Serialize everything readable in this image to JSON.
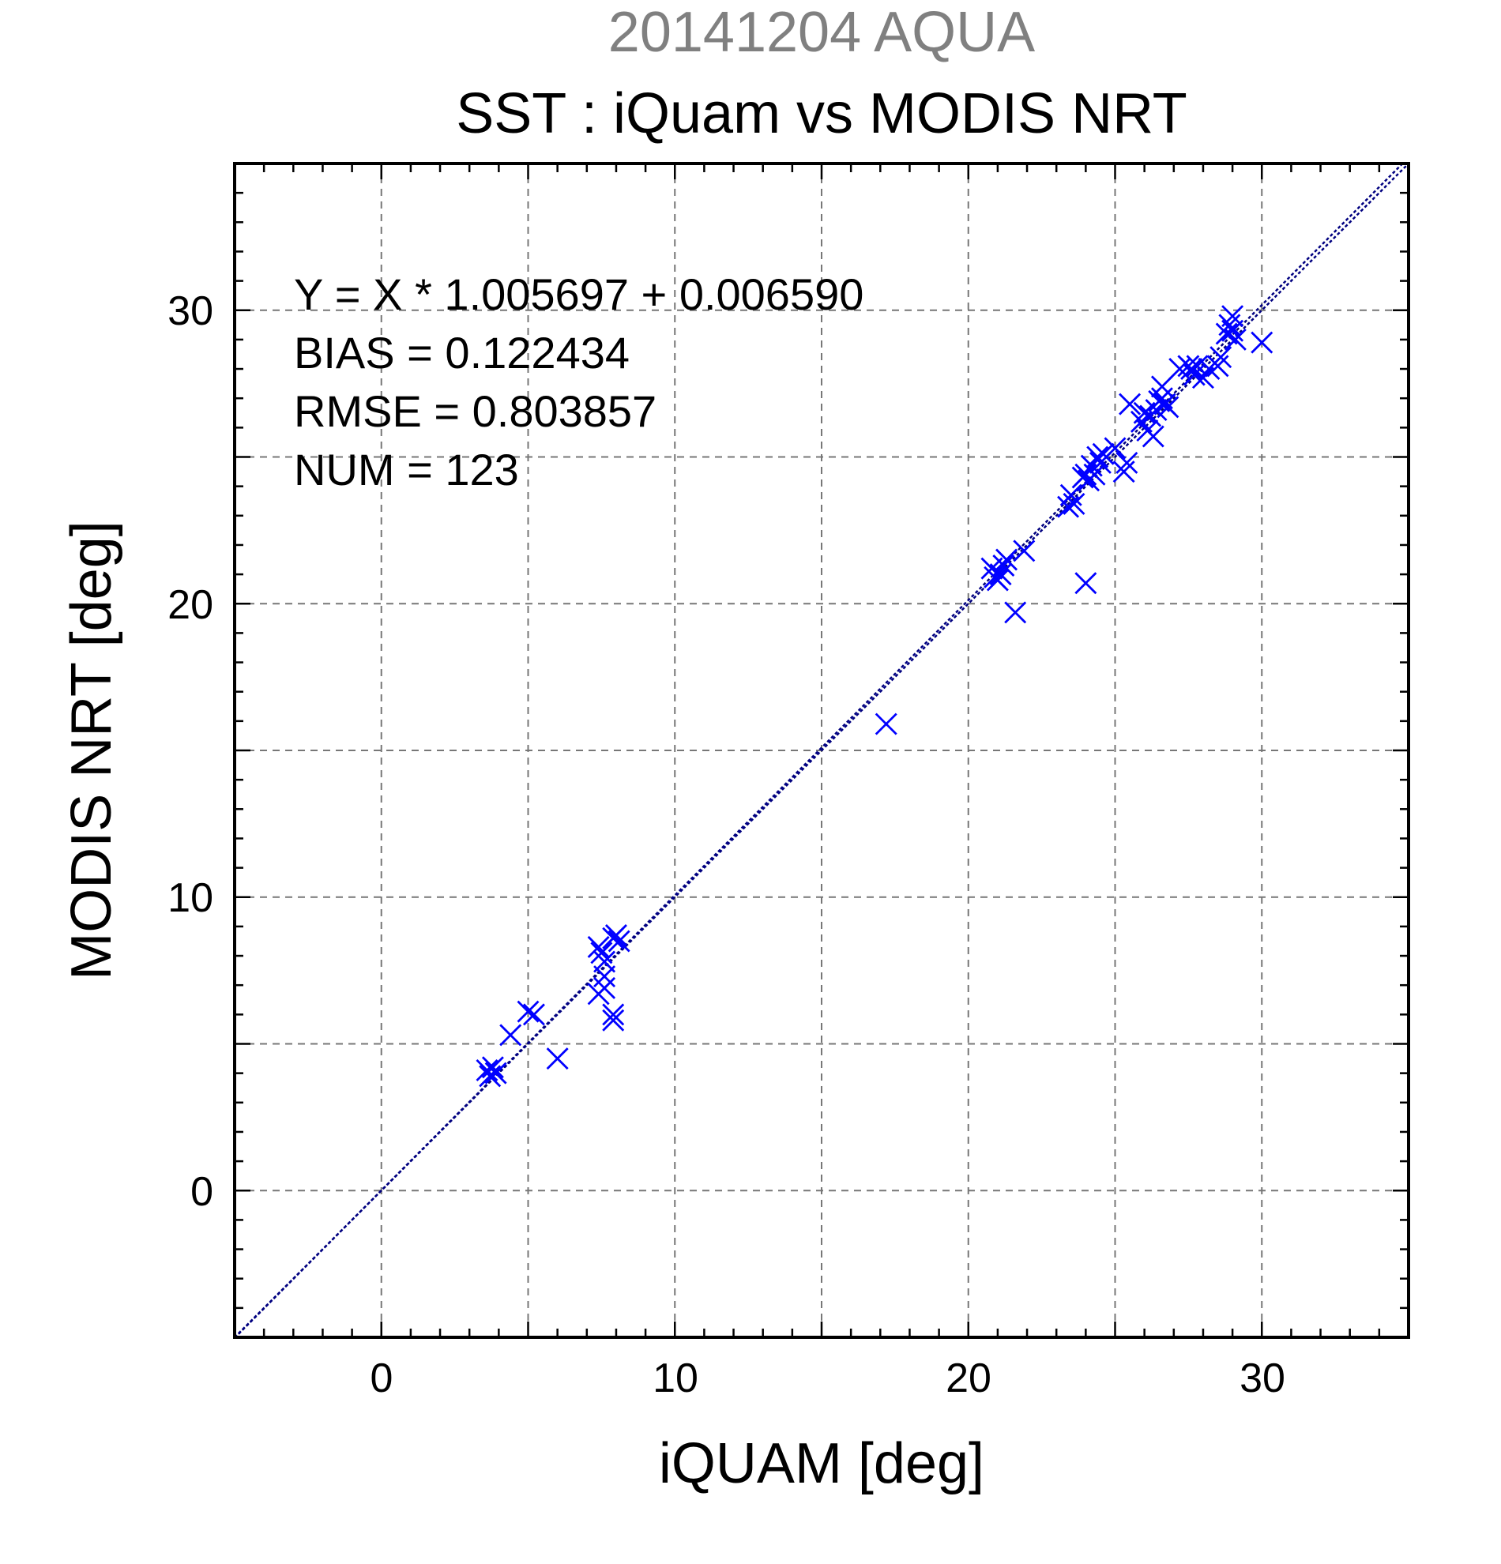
{
  "chart_data": {
    "type": "scatter",
    "title": "20141204 AQUA",
    "subtitle": "SST : iQuam vs MODIS NRT",
    "xlabel": "iQUAM [deg]",
    "ylabel": "MODIS NRT [deg]",
    "xlim": [
      -5,
      35
    ],
    "ylim": [
      -5,
      35
    ],
    "xticks": [
      "0",
      "10",
      "20",
      "30"
    ],
    "yticks": [
      "0",
      "10",
      "20",
      "30"
    ],
    "grid": true,
    "colors": {
      "points": "#0000ff",
      "fit_line": "#000080",
      "grid": "#777777"
    },
    "annotations": [
      "Y = X * 1.005697 + 0.006590",
      "BIAS = 0.122434",
      "RMSE = 0.803857",
      "NUM = 123"
    ],
    "fit": {
      "slope": 1.005697,
      "intercept": 0.00659
    },
    "points": [
      [
        3.6,
        4.1
      ],
      [
        3.7,
        3.9
      ],
      [
        3.8,
        4.2
      ],
      [
        3.9,
        4.0
      ],
      [
        4.4,
        5.3
      ],
      [
        5.0,
        6.1
      ],
      [
        5.2,
        6.0
      ],
      [
        6.0,
        4.5
      ],
      [
        7.4,
        8.3
      ],
      [
        7.5,
        8.1
      ],
      [
        7.6,
        7.8
      ],
      [
        7.4,
        6.7
      ],
      [
        7.6,
        6.9
      ],
      [
        7.6,
        7.3
      ],
      [
        7.9,
        5.8
      ],
      [
        7.9,
        6.0
      ],
      [
        7.9,
        8.6
      ],
      [
        8.0,
        8.7
      ],
      [
        8.1,
        8.5
      ],
      [
        17.2,
        15.9
      ],
      [
        20.8,
        21.2
      ],
      [
        20.9,
        20.9
      ],
      [
        21.0,
        20.8
      ],
      [
        21.1,
        21.0
      ],
      [
        21.2,
        21.3
      ],
      [
        21.3,
        21.5
      ],
      [
        21.6,
        19.7
      ],
      [
        21.9,
        21.8
      ],
      [
        23.4,
        23.3
      ],
      [
        23.5,
        23.7
      ],
      [
        23.6,
        23.4
      ],
      [
        23.9,
        24.3
      ],
      [
        24.0,
        24.4
      ],
      [
        24.1,
        24.2
      ],
      [
        24.2,
        24.7
      ],
      [
        24.3,
        24.4
      ],
      [
        24.4,
        25.0
      ],
      [
        24.5,
        24.8
      ],
      [
        24.6,
        25.1
      ],
      [
        24.0,
        20.7
      ],
      [
        25.0,
        25.3
      ],
      [
        25.3,
        24.5
      ],
      [
        25.4,
        24.8
      ],
      [
        25.5,
        26.8
      ],
      [
        25.9,
        26.2
      ],
      [
        26.0,
        26.5
      ],
      [
        26.1,
        25.9
      ],
      [
        26.2,
        26.4
      ],
      [
        26.3,
        25.7
      ],
      [
        26.4,
        26.6
      ],
      [
        26.5,
        26.9
      ],
      [
        26.6,
        27.0
      ],
      [
        26.7,
        26.8
      ],
      [
        26.8,
        26.7
      ],
      [
        26.6,
        27.4
      ],
      [
        27.2,
        28.0
      ],
      [
        27.5,
        28.1
      ],
      [
        27.6,
        28.0
      ],
      [
        27.8,
        28.1
      ],
      [
        27.7,
        27.8
      ],
      [
        28.0,
        27.7
      ],
      [
        28.2,
        28.0
      ],
      [
        28.5,
        28.1
      ],
      [
        28.6,
        28.4
      ],
      [
        28.8,
        29.2
      ],
      [
        28.9,
        29.5
      ],
      [
        29.0,
        29.8
      ],
      [
        29.1,
        29.0
      ],
      [
        29.0,
        29.3
      ],
      [
        30.0,
        28.9
      ]
    ]
  }
}
